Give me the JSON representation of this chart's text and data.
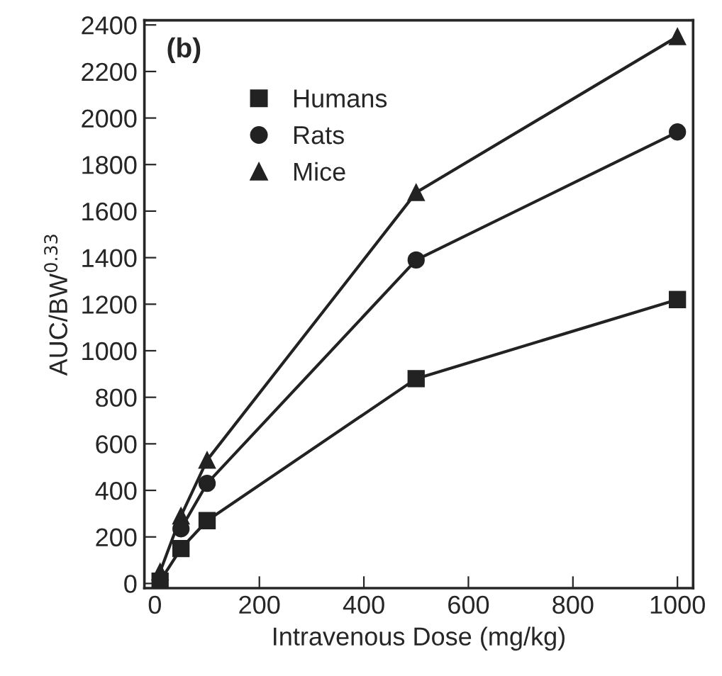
{
  "chart_data": {
    "type": "line",
    "xlabel": "Intravenous Dose (mg/kg)",
    "ylabel": "AUC/BW$^{0.33}$",
    "annotations": [
      "(b)"
    ],
    "x": [
      10,
      50,
      100,
      500,
      1000
    ],
    "series": [
      {
        "name": "Humans",
        "color": "#222222",
        "values": [
          10,
          150,
          270,
          880,
          1220
        ],
        "marker": "square"
      },
      {
        "name": "Rats",
        "color": "#222222",
        "values": [
          null,
          235,
          430,
          1390,
          1940
        ],
        "marker": "circle"
      },
      {
        "name": "Mice",
        "color": "#222222",
        "values": [
          50,
          290,
          530,
          1680,
          2350
        ],
        "marker": "triangle"
      }
    ],
    "xlim": [
      -20,
      1030
    ],
    "xticks": [
      0,
      200,
      400,
      600,
      800,
      1000
    ],
    "ylim": [
      -20,
      2420
    ],
    "yticks": [
      0,
      200,
      400,
      600,
      800,
      1000,
      1200,
      1400,
      1600,
      1800,
      2000,
      2200,
      2400
    ],
    "legend": "top left",
    "grid": false,
    "line_style": "solid"
  }
}
